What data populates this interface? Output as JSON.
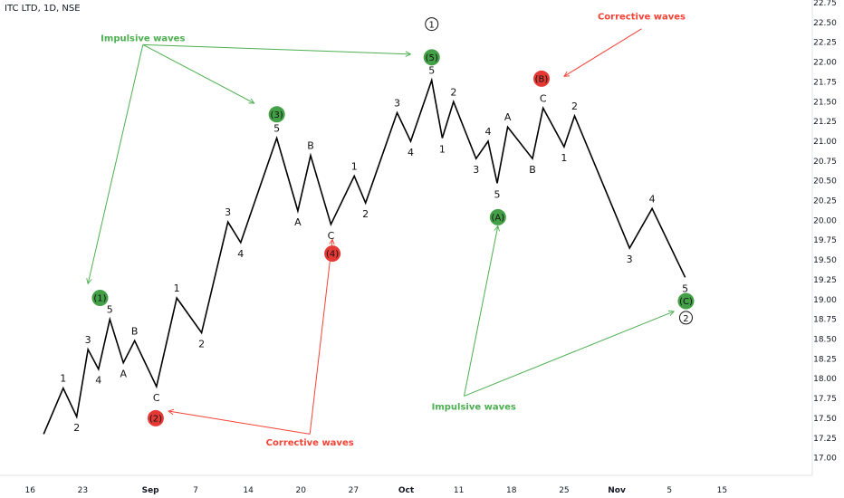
{
  "header": {
    "symbol": "ITC LTD, 1D, NSE"
  },
  "colors": {
    "line": "#000000",
    "impulse": "#4caf50",
    "corrective": "#f44336",
    "badge_green": "#43a047",
    "badge_red": "#e53935"
  },
  "chart_data": {
    "type": "line",
    "ylim": [
      16.95,
      22.75
    ],
    "x_range": [
      0,
      108
    ],
    "yticks": [
      17.0,
      17.25,
      17.5,
      17.75,
      18.0,
      18.25,
      18.5,
      18.75,
      19.0,
      19.25,
      19.5,
      19.75,
      20.0,
      20.25,
      20.5,
      20.75,
      21.0,
      21.25,
      21.5,
      21.75,
      22.0,
      22.25,
      22.5,
      22.75
    ],
    "xticks": [
      {
        "x": 4,
        "label": "16",
        "bold": false
      },
      {
        "x": 11,
        "label": "23",
        "bold": false
      },
      {
        "x": 20,
        "label": "Sep",
        "bold": true
      },
      {
        "x": 26,
        "label": "7",
        "bold": false
      },
      {
        "x": 33,
        "label": "14",
        "bold": false
      },
      {
        "x": 40,
        "label": "20",
        "bold": false
      },
      {
        "x": 47,
        "label": "27",
        "bold": false
      },
      {
        "x": 54,
        "label": "Oct",
        "bold": true
      },
      {
        "x": 61,
        "label": "11",
        "bold": false
      },
      {
        "x": 68,
        "label": "18",
        "bold": false
      },
      {
        "x": 75,
        "label": "25",
        "bold": false
      },
      {
        "x": 82,
        "label": "Nov",
        "bold": true
      },
      {
        "x": 89,
        "label": "5",
        "bold": false
      },
      {
        "x": 96,
        "label": "15",
        "bold": false
      }
    ],
    "points": [
      {
        "x": 5.8,
        "y": 17.3
      },
      {
        "x": 8.4,
        "y": 17.88,
        "label": "1",
        "pos": "above"
      },
      {
        "x": 10.2,
        "y": 17.52,
        "label": "2",
        "pos": "below"
      },
      {
        "x": 11.7,
        "y": 18.37,
        "label": "3",
        "pos": "above"
      },
      {
        "x": 13.1,
        "y": 18.12,
        "label": "4",
        "pos": "below"
      },
      {
        "x": 14.6,
        "y": 18.75,
        "label": "5",
        "pos": "above"
      },
      {
        "x": 16.4,
        "y": 18.2,
        "label": "A",
        "pos": "below"
      },
      {
        "x": 17.9,
        "y": 18.48,
        "label": "B",
        "pos": "above"
      },
      {
        "x": 20.8,
        "y": 17.9,
        "label": "C",
        "pos": "below"
      },
      {
        "x": 23.5,
        "y": 19.02,
        "label": "1",
        "pos": "above"
      },
      {
        "x": 26.8,
        "y": 18.58,
        "label": "2",
        "pos": "below"
      },
      {
        "x": 30.3,
        "y": 19.98,
        "label": "3",
        "pos": "above"
      },
      {
        "x": 32.0,
        "y": 19.72,
        "label": "4",
        "pos": "below"
      },
      {
        "x": 36.8,
        "y": 21.04,
        "label": "5",
        "pos": "above"
      },
      {
        "x": 39.6,
        "y": 20.12,
        "label": "A",
        "pos": "below"
      },
      {
        "x": 41.3,
        "y": 20.82,
        "label": "B",
        "pos": "above"
      },
      {
        "x": 44.0,
        "y": 19.95,
        "label": "C",
        "pos": "below"
      },
      {
        "x": 47.1,
        "y": 20.56,
        "label": "1",
        "pos": "above"
      },
      {
        "x": 48.6,
        "y": 20.22,
        "label": "2",
        "pos": "below"
      },
      {
        "x": 52.8,
        "y": 21.36,
        "label": "3",
        "pos": "above"
      },
      {
        "x": 54.6,
        "y": 21.0,
        "label": "4",
        "pos": "below"
      },
      {
        "x": 57.4,
        "y": 21.77,
        "label": "5",
        "pos": "above"
      },
      {
        "x": 58.8,
        "y": 21.04,
        "label": "1",
        "pos": "below"
      },
      {
        "x": 60.3,
        "y": 21.5,
        "label": "2",
        "pos": "above"
      },
      {
        "x": 63.3,
        "y": 20.78,
        "label": "3",
        "pos": "below"
      },
      {
        "x": 64.9,
        "y": 21.0,
        "label": "4",
        "pos": "above"
      },
      {
        "x": 66.1,
        "y": 20.47,
        "label": "5",
        "pos": "below"
      },
      {
        "x": 67.5,
        "y": 21.18,
        "label": "A",
        "pos": "above"
      },
      {
        "x": 70.8,
        "y": 20.78,
        "label": "B",
        "pos": "below"
      },
      {
        "x": 72.2,
        "y": 21.42,
        "label": "C",
        "pos": "above"
      },
      {
        "x": 75.0,
        "y": 20.93,
        "label": "1",
        "pos": "below"
      },
      {
        "x": 76.4,
        "y": 21.32,
        "label": "2",
        "pos": "above"
      },
      {
        "x": 83.7,
        "y": 19.65,
        "label": "3",
        "pos": "below"
      },
      {
        "x": 86.7,
        "y": 20.15,
        "label": "4",
        "pos": "above"
      },
      {
        "x": 91.1,
        "y": 19.28,
        "label": "5",
        "pos": "below"
      }
    ],
    "badges": [
      {
        "x": 13.3,
        "y": 19.02,
        "label": "(1)",
        "color": "green"
      },
      {
        "x": 20.7,
        "y": 17.5,
        "label": "(2)",
        "color": "red"
      },
      {
        "x": 36.8,
        "y": 21.34,
        "label": "(3)",
        "color": "green"
      },
      {
        "x": 44.2,
        "y": 19.58,
        "label": "(4)",
        "color": "red"
      },
      {
        "x": 57.4,
        "y": 22.06,
        "label": "(5)",
        "color": "green"
      },
      {
        "x": 66.2,
        "y": 20.04,
        "label": "(A)",
        "color": "green"
      },
      {
        "x": 72.0,
        "y": 21.79,
        "label": "(B)",
        "color": "red"
      },
      {
        "x": 91.2,
        "y": 18.98,
        "label": "(C)",
        "color": "green"
      }
    ],
    "circles": [
      {
        "x": 57.4,
        "y": 22.48,
        "label": "1"
      },
      {
        "x": 91.2,
        "y": 18.77,
        "label": "2"
      }
    ],
    "annotations": [
      {
        "text": "Impulsive waves",
        "x": 19.0,
        "y": 22.3,
        "color": "impulse"
      },
      {
        "text": "Corrective waves",
        "x": 85.3,
        "y": 22.57,
        "color": "corrective"
      },
      {
        "text": "Corrective waves",
        "x": 41.2,
        "y": 17.19,
        "color": "corrective"
      },
      {
        "text": "Impulsive waves",
        "x": 63.0,
        "y": 17.64,
        "color": "impulse"
      }
    ],
    "arrows": [
      {
        "from": [
          19.0,
          22.22
        ],
        "to": [
          11.7,
          19.2
        ],
        "color": "impulse"
      },
      {
        "from": [
          19.0,
          22.22
        ],
        "to": [
          33.8,
          21.48
        ],
        "color": "impulse"
      },
      {
        "from": [
          19.0,
          22.22
        ],
        "to": [
          54.6,
          22.1
        ],
        "color": "impulse"
      },
      {
        "from": [
          85.3,
          22.42
        ],
        "to": [
          75.0,
          21.82
        ],
        "color": "corrective"
      },
      {
        "from": [
          41.2,
          17.3
        ],
        "to": [
          22.4,
          17.59
        ],
        "color": "corrective"
      },
      {
        "from": [
          41.2,
          17.3
        ],
        "to": [
          44.2,
          19.76
        ],
        "color": "corrective"
      },
      {
        "from": [
          61.7,
          17.78
        ],
        "to": [
          66.2,
          19.93
        ],
        "color": "impulse"
      },
      {
        "from": [
          61.7,
          17.78
        ],
        "to": [
          89.6,
          18.85
        ],
        "color": "impulse"
      }
    ]
  }
}
